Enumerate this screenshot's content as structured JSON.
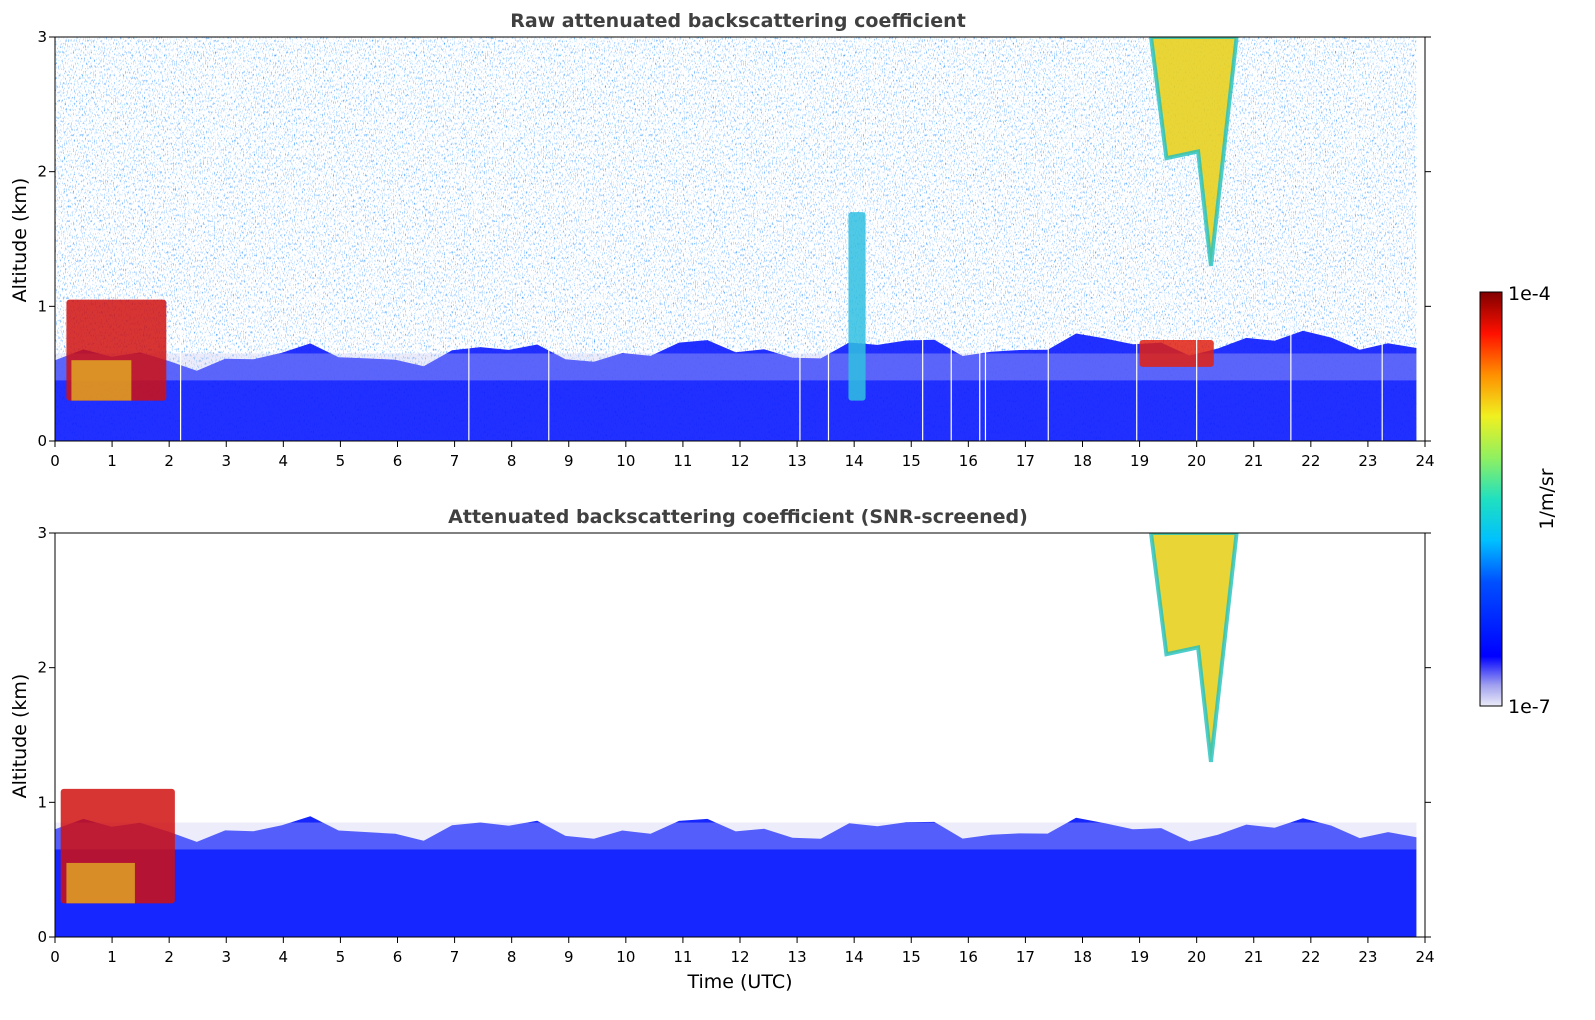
{
  "chart_data": [
    {
      "type": "heatmap",
      "title": "Raw attenuated backscattering coefficient",
      "xlabel": "",
      "ylabel": "Altitude (km)",
      "xlim": [
        0,
        24
      ],
      "ylim": [
        0,
        3
      ],
      "xticks": [
        "0",
        "1",
        "2",
        "3",
        "4",
        "5",
        "6",
        "7",
        "8",
        "9",
        "10",
        "11",
        "12",
        "13",
        "14",
        "15",
        "16",
        "17",
        "18",
        "19",
        "20",
        "21",
        "22",
        "23",
        "24"
      ],
      "yticks": [
        "0",
        "1",
        "2",
        "3"
      ],
      "grid": false,
      "data_end_hour": 23.85,
      "gap_hours": [
        2.2,
        7.25,
        8.65,
        13.05,
        13.55,
        15.2,
        15.7,
        16.2,
        16.3,
        17.4,
        18.95,
        20.0,
        21.65,
        23.25
      ],
      "features": [
        {
          "feature": "boundary-layer aerosol",
          "start_h": 0,
          "end_h": 23.85,
          "top_km_start": 0.6,
          "top_km_end": 0.75
        },
        {
          "feature": "low cloud",
          "start_h": 0.2,
          "end_h": 1.95,
          "base_km": 0.3,
          "top_km": 1.05
        },
        {
          "feature": "precipitation fall streak",
          "start_h": 19.2,
          "end_h": 20.7,
          "base_km": 1.3,
          "top_km": 3.0
        },
        {
          "feature": "thin cloud",
          "start_h": 13.9,
          "end_h": 14.2,
          "base_km": 0.3,
          "top_km": 1.7
        },
        {
          "feature": "cloud top",
          "start_h": 19.0,
          "end_h": 20.3,
          "base_km": 0.55,
          "top_km": 0.75
        }
      ]
    },
    {
      "type": "heatmap",
      "title": "Attenuated backscattering coefficient (SNR-screened)",
      "xlabel": "Time (UTC)",
      "ylabel": "Altitude (km)",
      "xlim": [
        0,
        24
      ],
      "ylim": [
        0,
        3
      ],
      "xticks": [
        "0",
        "1",
        "2",
        "3",
        "4",
        "5",
        "6",
        "7",
        "8",
        "9",
        "10",
        "11",
        "12",
        "13",
        "14",
        "15",
        "16",
        "17",
        "18",
        "19",
        "20",
        "21",
        "22",
        "23",
        "24"
      ],
      "yticks": [
        "0",
        "1",
        "2",
        "3"
      ],
      "grid": false,
      "data_end_hour": 23.85,
      "features": [
        {
          "feature": "boundary-layer aerosol",
          "start_h": 0,
          "end_h": 23.85,
          "top_km_start": 0.8,
          "top_km_end": 0.8
        },
        {
          "feature": "low cloud",
          "start_h": 0.1,
          "end_h": 2.1,
          "base_km": 0.25,
          "top_km": 1.1
        },
        {
          "feature": "precipitation fall streak",
          "start_h": 19.2,
          "end_h": 20.7,
          "base_km": 1.3,
          "top_km": 3.0
        }
      ]
    }
  ],
  "colorbar": {
    "label": "1/m/sr",
    "max_label": "1e-4",
    "min_label": "1e-7",
    "min_value": 1e-07,
    "max_value": 0.0001,
    "scale": "log",
    "colormap": "jet"
  },
  "colors": {
    "axis": "#000000",
    "title": "#404040",
    "background": "#ffffff"
  }
}
